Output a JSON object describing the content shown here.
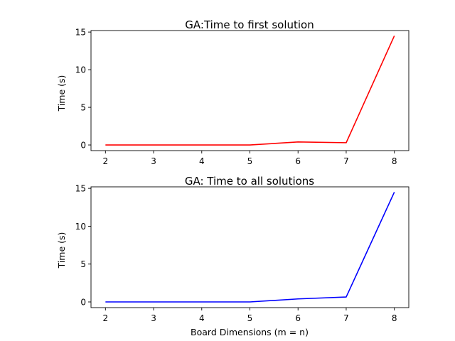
{
  "chart_data": [
    {
      "type": "line",
      "title": "GA:Time to first solution",
      "xlabel": "",
      "ylabel": "Time (s)",
      "x": [
        2,
        3,
        4,
        5,
        6,
        7,
        8
      ],
      "series": [
        {
          "color": "#ff0000",
          "values": [
            0.0,
            0.0,
            0.0,
            0.0,
            0.4,
            0.3,
            14.5
          ]
        }
      ],
      "xlim": [
        1.7,
        8.3
      ],
      "ylim": [
        -0.75,
        15.2
      ],
      "xticks": [
        2,
        3,
        4,
        5,
        6,
        7,
        8
      ],
      "yticks": [
        0,
        5,
        10,
        15
      ],
      "grid": false
    },
    {
      "type": "line",
      "title": "GA: Time to all solutions",
      "xlabel": "Board Dimensions (m = n)",
      "ylabel": "Time (s)",
      "x": [
        2,
        3,
        4,
        5,
        6,
        7,
        8
      ],
      "series": [
        {
          "color": "#0000ff",
          "values": [
            0.0,
            0.0,
            0.0,
            0.0,
            0.4,
            0.65,
            14.5
          ]
        }
      ],
      "xlim": [
        1.7,
        8.3
      ],
      "ylim": [
        -0.75,
        15.2
      ],
      "xticks": [
        2,
        3,
        4,
        5,
        6,
        7,
        8
      ],
      "yticks": [
        0,
        5,
        10,
        15
      ],
      "grid": false
    }
  ]
}
